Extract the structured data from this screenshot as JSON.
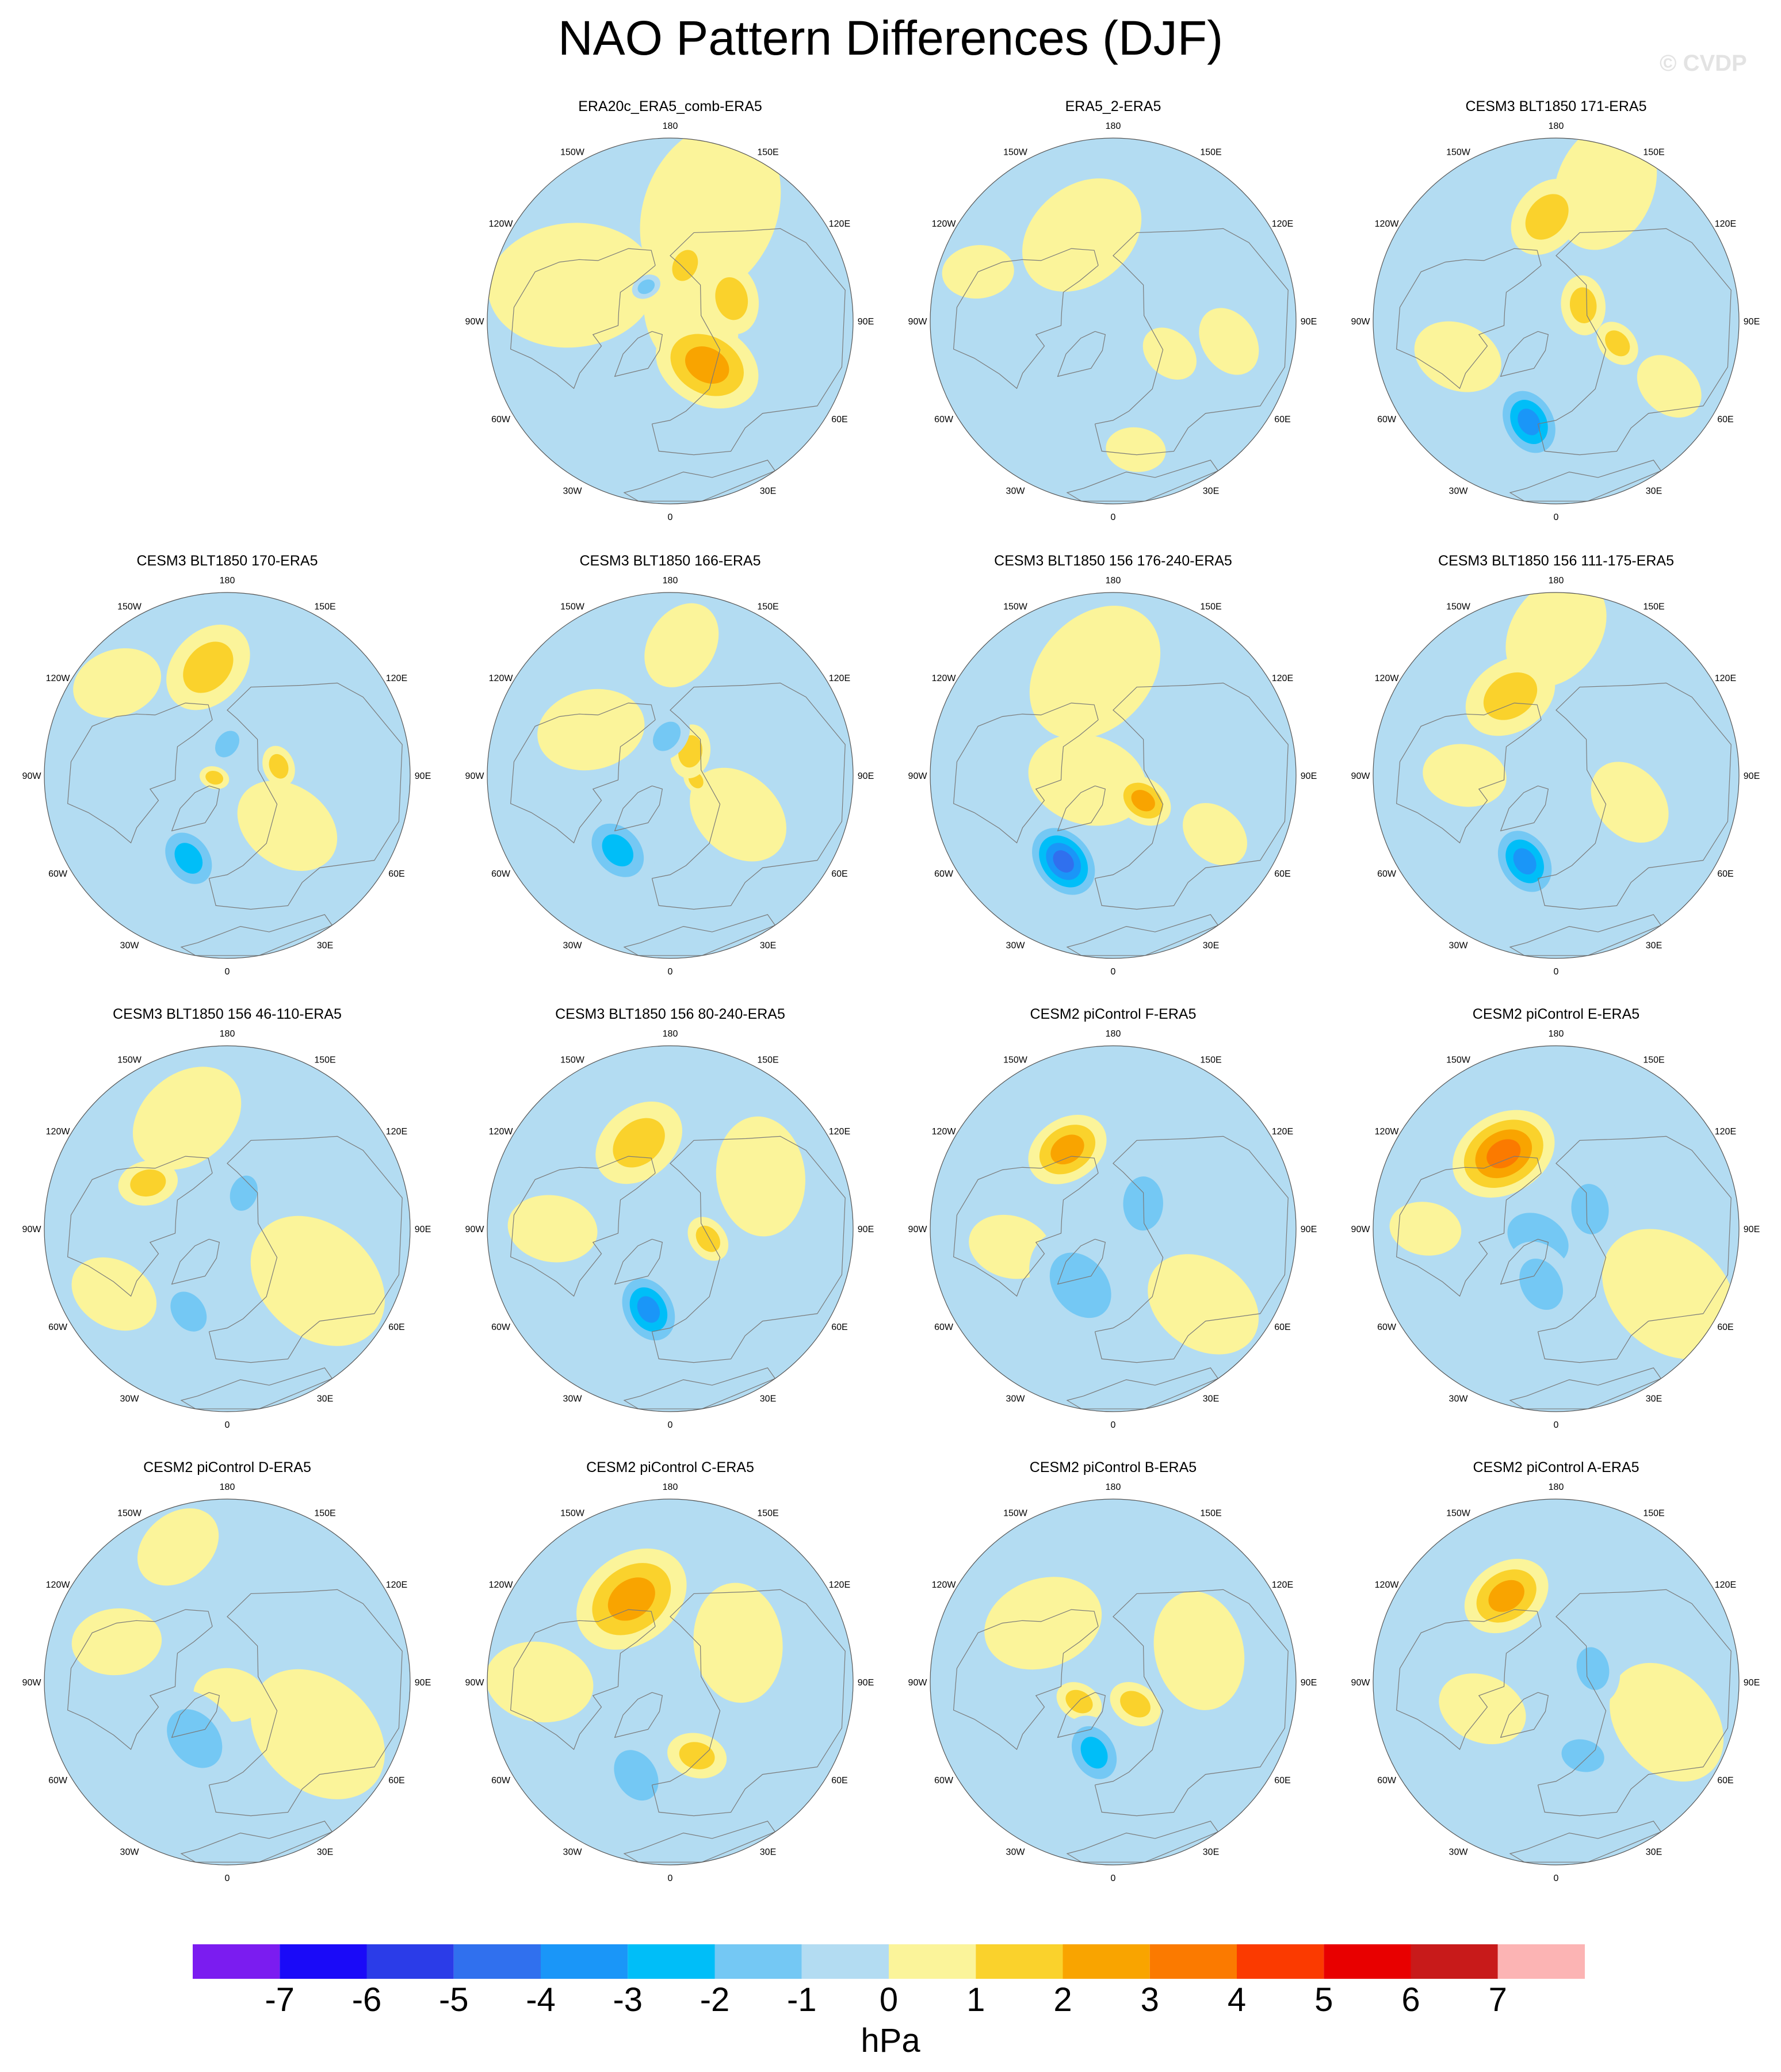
{
  "title": "NAO Pattern Differences (DJF)",
  "watermark": "© CVDP",
  "colors": {
    "ocean_neutral_neg": "#b3dcf2",
    "neutral_pos": "#fbf49a",
    "coast": "#7a7a7a"
  },
  "lon_labels": [
    "180",
    "150E",
    "120E",
    "90E",
    "60E",
    "30E",
    "0",
    "30W",
    "60W",
    "90W",
    "120W",
    "150W"
  ],
  "chart_data": {
    "type": "contour-map",
    "projection": "north polar stereographic",
    "units": "hPa",
    "levels": [
      -7,
      -6,
      -5,
      -4,
      -3,
      -2,
      -1,
      0,
      1,
      2,
      3,
      4,
      5,
      6,
      7
    ],
    "level_colors": [
      "#7b1cf0",
      "#1a0af8",
      "#2b3ce8",
      "#3070ee",
      "#1a96f8",
      "#00bef8",
      "#74c8f4",
      "#b3dcf2",
      "#fbf49a",
      "#fad22c",
      "#f9a400",
      "#fb7a00",
      "#fb3a00",
      "#e80000",
      "#c81a1a",
      "#fcb4b4"
    ],
    "panels": [
      {
        "title": "ERA20c_ERA5_comb-ERA5",
        "features": [
          {
            "lon": 40,
            "colat": 22,
            "r": 18,
            "v": 2.4
          },
          {
            "lon": 110,
            "colat": 25,
            "r": 12,
            "v": 1.5
          },
          {
            "lon": 165,
            "colat": 22,
            "r": 9,
            "v": 1.3
          },
          {
            "lon": 215,
            "colat": 16,
            "r": 5,
            "v": -1.2
          },
          {
            "lon": 95,
            "colat": 8,
            "r": 20,
            "v": 0.6
          },
          {
            "lon": 160,
            "colat": 45,
            "r": 30,
            "v": 0.6
          },
          {
            "lon": 250,
            "colat": 40,
            "r": 28,
            "v": 0.6
          }
        ]
      },
      {
        "title": "ERA5_2-ERA5",
        "features": [
          {
            "lon": 200,
            "colat": 35,
            "r": 22,
            "v": 0.6
          },
          {
            "lon": 80,
            "colat": 45,
            "r": 12,
            "v": 0.6
          },
          {
            "lon": 60,
            "colat": 25,
            "r": 10,
            "v": 0.6
          },
          {
            "lon": 10,
            "colat": 50,
            "r": 10,
            "v": 0.5
          },
          {
            "lon": 250,
            "colat": 55,
            "r": 12,
            "v": 0.5
          }
        ]
      },
      {
        "title": "CESM3 BLT1850 171-ERA5",
        "features": [
          {
            "lon": 345,
            "colat": 40,
            "r": 14,
            "v": -3.2
          },
          {
            "lon": 185,
            "colat": 40,
            "r": 14,
            "v": 1.5
          },
          {
            "lon": 120,
            "colat": 12,
            "r": 10,
            "v": 1.3
          },
          {
            "lon": 70,
            "colat": 25,
            "r": 8,
            "v": 1.2
          },
          {
            "lon": 160,
            "colat": 55,
            "r": 22,
            "v": 0.6
          },
          {
            "lon": 290,
            "colat": 40,
            "r": 15,
            "v": 0.6
          },
          {
            "lon": 60,
            "colat": 50,
            "r": 12,
            "v": 0.6
          }
        ]
      },
      {
        "title": "CESM3 BLT1850 170-ERA5",
        "features": [
          {
            "lon": 335,
            "colat": 35,
            "r": 13,
            "v": -2.9
          },
          {
            "lon": 190,
            "colat": 42,
            "r": 16,
            "v": 1.4
          },
          {
            "lon": 180,
            "colat": 12,
            "r": 8,
            "v": -1.6
          },
          {
            "lon": 100,
            "colat": 20,
            "r": 7,
            "v": 1.3
          },
          {
            "lon": 280,
            "colat": 5,
            "r": 5,
            "v": 1.2
          },
          {
            "lon": 50,
            "colat": 30,
            "r": 18,
            "v": 0.6
          },
          {
            "lon": 230,
            "colat": 55,
            "r": 15,
            "v": 0.6
          }
        ]
      },
      {
        "title": "CESM3 BLT1850 166-ERA5",
        "features": [
          {
            "lon": 325,
            "colat": 35,
            "r": 14,
            "v": -2.6
          },
          {
            "lon": 140,
            "colat": 12,
            "r": 9,
            "v": 1.4
          },
          {
            "lon": 185,
            "colat": 15,
            "r": 9,
            "v": -1.5
          },
          {
            "lon": 80,
            "colat": 10,
            "r": 5,
            "v": 1.2
          },
          {
            "lon": 60,
            "colat": 30,
            "r": 18,
            "v": 0.6
          },
          {
            "lon": 240,
            "colat": 35,
            "r": 18,
            "v": 0.6
          },
          {
            "lon": 175,
            "colat": 50,
            "r": 15,
            "v": 0.6
          }
        ]
      },
      {
        "title": "CESM3 BLT1850 156 176-240-ERA5",
        "features": [
          {
            "lon": 330,
            "colat": 38,
            "r": 15,
            "v": -4.2
          },
          {
            "lon": 50,
            "colat": 15,
            "r": 10,
            "v": 2.4
          },
          {
            "lon": 190,
            "colat": 40,
            "r": 25,
            "v": 0.6
          },
          {
            "lon": 280,
            "colat": 10,
            "r": 20,
            "v": 0.6
          },
          {
            "lon": 60,
            "colat": 45,
            "r": 12,
            "v": 0.5
          }
        ]
      },
      {
        "title": "CESM3 BLT1850 156 111-175-ERA5",
        "features": [
          {
            "lon": 340,
            "colat": 35,
            "r": 14,
            "v": -3.1
          },
          {
            "lon": 210,
            "colat": 35,
            "r": 16,
            "v": 1.4
          },
          {
            "lon": 70,
            "colat": 30,
            "r": 15,
            "v": 0.6
          },
          {
            "lon": 180,
            "colat": 55,
            "r": 20,
            "v": 0.6
          },
          {
            "lon": 270,
            "colat": 35,
            "r": 14,
            "v": 0.6
          }
        ]
      },
      {
        "title": "CESM3 BLT1850 156 46-110-ERA5",
        "features": [
          {
            "lon": 335,
            "colat": 35,
            "r": 12,
            "v": -1.6
          },
          {
            "lon": 155,
            "colat": 15,
            "r": 10,
            "v": -1.4
          },
          {
            "lon": 240,
            "colat": 35,
            "r": 10,
            "v": 1.4
          },
          {
            "lon": 60,
            "colat": 40,
            "r": 25,
            "v": 0.6
          },
          {
            "lon": 200,
            "colat": 45,
            "r": 20,
            "v": 0.6
          },
          {
            "lon": 300,
            "colat": 50,
            "r": 15,
            "v": 0.6
          }
        ]
      },
      {
        "title": "CESM3 BLT1850 156 80-240-ERA5",
        "features": [
          {
            "lon": 345,
            "colat": 32,
            "r": 14,
            "v": -3.3
          },
          {
            "lon": 75,
            "colat": 15,
            "r": 8,
            "v": 1.3
          },
          {
            "lon": 200,
            "colat": 35,
            "r": 16,
            "v": 1.3
          },
          {
            "lon": 120,
            "colat": 40,
            "r": 20,
            "v": 0.6
          },
          {
            "lon": 270,
            "colat": 45,
            "r": 15,
            "v": 0.6
          }
        ]
      },
      {
        "title": "CESM2 piControl F-ERA5",
        "features": [
          {
            "lon": 210,
            "colat": 35,
            "r": 14,
            "v": 2.2
          },
          {
            "lon": 330,
            "colat": 25,
            "r": 20,
            "v": -1.6
          },
          {
            "lon": 130,
            "colat": 15,
            "r": 15,
            "v": -1.3
          },
          {
            "lon": 50,
            "colat": 45,
            "r": 20,
            "v": 0.6
          },
          {
            "lon": 280,
            "colat": 40,
            "r": 14,
            "v": 0.6
          }
        ]
      },
      {
        "title": "CESM2 piControl E-ERA5",
        "features": [
          {
            "lon": 215,
            "colat": 35,
            "r": 18,
            "v": 3.3
          },
          {
            "lon": 345,
            "colat": 22,
            "r": 15,
            "v": -2.0
          },
          {
            "lon": 120,
            "colat": 15,
            "r": 14,
            "v": -1.4
          },
          {
            "lon": 300,
            "colat": 8,
            "r": 18,
            "v": -1.2
          },
          {
            "lon": 60,
            "colat": 50,
            "r": 25,
            "v": 0.6
          },
          {
            "lon": 270,
            "colat": 50,
            "r": 12,
            "v": 0.6
          }
        ]
      },
      {
        "title": "CESM2 piControl D-ERA5",
        "features": [
          {
            "lon": 330,
            "colat": 25,
            "r": 18,
            "v": -1.4
          },
          {
            "lon": 10,
            "colat": 5,
            "r": 12,
            "v": 0.6
          },
          {
            "lon": 60,
            "colat": 40,
            "r": 25,
            "v": 0.6
          },
          {
            "lon": 200,
            "colat": 55,
            "r": 15,
            "v": 0.6
          },
          {
            "lon": 250,
            "colat": 45,
            "r": 15,
            "v": 0.6
          }
        ]
      },
      {
        "title": "CESM2 piControl C-ERA5",
        "features": [
          {
            "lon": 205,
            "colat": 35,
            "r": 20,
            "v": 2.9
          },
          {
            "lon": 340,
            "colat": 38,
            "r": 15,
            "v": -1.6
          },
          {
            "lon": 20,
            "colat": 30,
            "r": 10,
            "v": 1.4
          },
          {
            "lon": 120,
            "colat": 30,
            "r": 20,
            "v": 0.6
          },
          {
            "lon": 270,
            "colat": 50,
            "r": 18,
            "v": 0.6
          }
        ]
      },
      {
        "title": "CESM2 piControl B-ERA5",
        "features": [
          {
            "lon": 345,
            "colat": 28,
            "r": 13,
            "v": -3.0
          },
          {
            "lon": 45,
            "colat": 12,
            "r": 9,
            "v": 1.3
          },
          {
            "lon": 300,
            "colat": 15,
            "r": 8,
            "v": 1.2
          },
          {
            "lon": 110,
            "colat": 35,
            "r": 20,
            "v": 0.6
          },
          {
            "lon": 230,
            "colat": 35,
            "r": 20,
            "v": 0.6
          }
        ]
      },
      {
        "title": "CESM2 piControl A-ERA5",
        "features": [
          {
            "lon": 210,
            "colat": 38,
            "r": 15,
            "v": 2.8
          },
          {
            "lon": 110,
            "colat": 15,
            "r": 12,
            "v": -1.4
          },
          {
            "lon": 20,
            "colat": 30,
            "r": 12,
            "v": -1.3
          },
          {
            "lon": 70,
            "colat": 45,
            "r": 22,
            "v": 0.6
          },
          {
            "lon": 290,
            "colat": 30,
            "r": 15,
            "v": 0.6
          }
        ]
      }
    ],
    "colorbar_ticks": [
      "-7",
      "-6",
      "-5",
      "-4",
      "-3",
      "-2",
      "-1",
      "0",
      "1",
      "2",
      "3",
      "4",
      "5",
      "6",
      "7"
    ]
  }
}
